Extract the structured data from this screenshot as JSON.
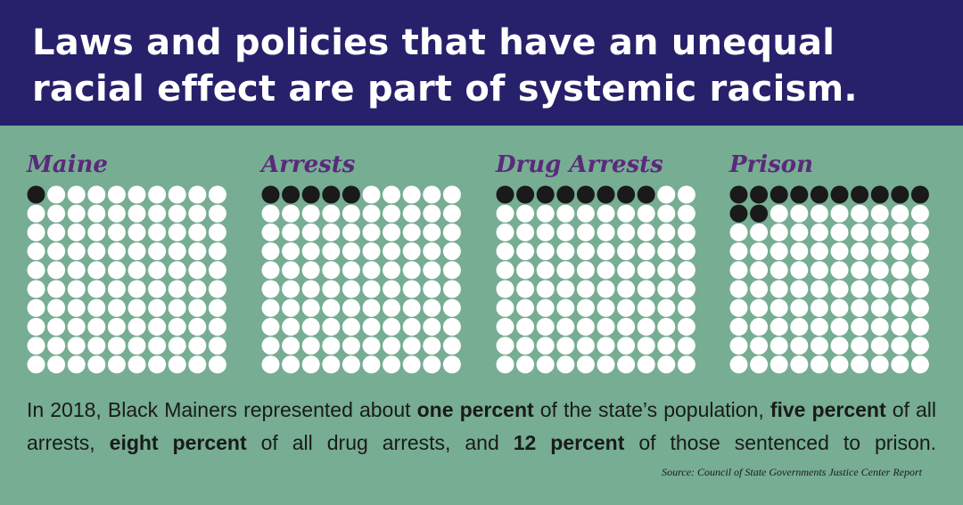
{
  "header": {
    "title_line1": "Laws and policies that have an unequal",
    "title_line2": "racial effect are part of systemic racism."
  },
  "colors": {
    "header_bg": "#26216a",
    "page_bg": "#76ad93",
    "label": "#5a2a7a",
    "filled_dot": "#1a1a1a",
    "empty_dot": "#ffffff"
  },
  "chart_data": [
    {
      "type": "waffle",
      "title": "Maine",
      "total": 100,
      "value": 1
    },
    {
      "type": "waffle",
      "title": "Arrests",
      "total": 100,
      "value": 5
    },
    {
      "type": "waffle",
      "title": "Drug Arrests",
      "total": 100,
      "value": 8
    },
    {
      "type": "waffle",
      "title": "Prison",
      "total": 100,
      "value": 12
    }
  ],
  "caption": {
    "part1": "In 2018, Black Mainers represented about ",
    "bold1": "one percent",
    "part2": " of the state’s population, ",
    "bold2": "five percent",
    "part3": " of all arrests, ",
    "bold3": "eight percent",
    "part4": " of all drug arrests, and ",
    "bold4": "12 percent",
    "part5": " of those sentenced to prison."
  },
  "source": "Source: Council of State Governments Justice Center Report"
}
